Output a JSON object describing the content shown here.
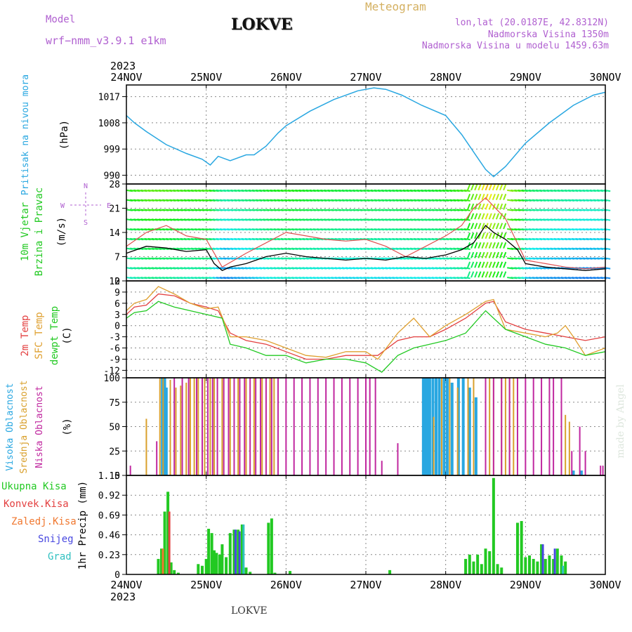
{
  "header": {
    "model_label": "Model",
    "model_value": "wrf−nmm_v3.9.1  e1km",
    "station": "LOKVE",
    "meteogram": "Meteogram",
    "lonlat": "lon,lat (20.0187E, 42.8312N)",
    "elev": "Nadmorska Visina 1350m",
    "elev_model": "Nadmorska Visina u modelu 1459.63m",
    "footer": "LOKVE",
    "credit": "made by Angel",
    "year": "2023"
  },
  "colors": {
    "pressure": "#29a7e1",
    "wind_speed": "#000000",
    "gust": "#e05050",
    "t2m": "#e34040",
    "sfc": "#dfa030",
    "dew": "#22c922",
    "high_cloud": "#29a7e1",
    "mid_cloud": "#d9a02c",
    "low_cloud": "#c0279f",
    "total": "#22c922",
    "conv": "#e34040",
    "frozen": "#f07830",
    "snow": "#4848e0",
    "grad": "#30c0c0",
    "grid": "#888888"
  },
  "chart_data": [
    {
      "type": "line",
      "ylabel": "Pritisak na nivou mora",
      "unit": "(hPa)",
      "x_ticks": [
        "24NOV",
        "25NOV",
        "26NOV",
        "27NOV",
        "28NOV",
        "29NOV",
        "30NOV"
      ],
      "x_range_days": [
        0,
        6
      ],
      "yticks": [
        990,
        999,
        1008,
        1017
      ],
      "ylim": [
        987,
        1021
      ],
      "series": [
        {
          "name": "",
          "x": [
            0,
            0.1,
            0.25,
            0.5,
            0.75,
            0.95,
            1.05,
            1.15,
            1.3,
            1.5,
            1.6,
            1.75,
            1.9,
            2.0,
            2.3,
            2.6,
            2.9,
            3.1,
            3.25,
            3.45,
            3.7,
            4.0,
            4.2,
            4.4,
            4.5,
            4.6,
            4.75,
            5.0,
            5.3,
            5.6,
            5.85,
            6.0
          ],
          "y": [
            1010.5,
            1008,
            1005,
            1000.5,
            997.5,
            995.5,
            993.5,
            996.5,
            995,
            997,
            997,
            1000,
            1004.5,
            1007,
            1012,
            1016,
            1019,
            1020,
            1019.5,
            1017.5,
            1014,
            1010.5,
            1004,
            996,
            992,
            989.5,
            993,
            1001,
            1008,
            1014,
            1017.5,
            1018.5
          ]
        }
      ]
    },
    {
      "type": "line",
      "ylabel": "10m Vjetar Brzina i Pravac",
      "unit": "(m/s)",
      "compass": [
        "N",
        "W",
        "E",
        "S"
      ],
      "yticks": [
        0,
        7,
        14,
        21,
        28
      ],
      "ylim": [
        0,
        28
      ],
      "series": [
        {
          "name": "wind",
          "x": [
            0,
            0.25,
            0.5,
            0.75,
            1.0,
            1.1,
            1.2,
            1.3,
            1.5,
            1.75,
            2.0,
            2.25,
            2.5,
            2.75,
            3.0,
            3.25,
            3.5,
            3.75,
            4.0,
            4.2,
            4.35,
            4.5,
            4.6,
            4.75,
            4.9,
            5.0,
            5.25,
            5.5,
            5.75,
            6.0
          ],
          "y": [
            8,
            10,
            9.5,
            8.5,
            9,
            5,
            3,
            4,
            5,
            7,
            8,
            7,
            6.5,
            6,
            6.5,
            6,
            7,
            6.5,
            7.5,
            9,
            11,
            16,
            14,
            12,
            9,
            5,
            4,
            3.5,
            3,
            3.5
          ]
        },
        {
          "name": "gust",
          "x": [
            0,
            0.25,
            0.5,
            0.75,
            1.0,
            1.2,
            1.5,
            1.75,
            2.0,
            2.25,
            2.5,
            2.75,
            3.0,
            3.25,
            3.5,
            3.75,
            4.0,
            4.2,
            4.35,
            4.5,
            4.75,
            5.0,
            5.25,
            5.5,
            5.75,
            6.0
          ],
          "y": [
            10,
            14,
            16,
            13,
            12,
            4,
            8,
            11,
            14,
            13,
            12,
            11.5,
            12,
            10,
            7,
            10,
            13,
            16,
            21,
            24,
            18,
            6,
            5,
            4,
            3.5,
            4
          ]
        }
      ]
    },
    {
      "type": "line",
      "ylabel": "2m Temp / SFC Temp / dewpt Temp",
      "unit": "(C)",
      "yticks": [
        -12,
        -9,
        -6,
        -3,
        0,
        3,
        6,
        9,
        12
      ],
      "ylim": [
        -14,
        12
      ],
      "series": [
        {
          "name": "2m Temp",
          "x": [
            0,
            0.1,
            0.25,
            0.4,
            0.6,
            0.8,
            1.0,
            1.15,
            1.3,
            1.5,
            1.75,
            2.0,
            2.25,
            2.5,
            2.75,
            3.0,
            3.15,
            3.4,
            3.6,
            3.8,
            4.0,
            4.25,
            4.5,
            4.6,
            4.75,
            5.0,
            5.25,
            5.5,
            5.75,
            6.0
          ],
          "y": [
            3,
            5,
            5.5,
            8.5,
            8,
            6,
            5,
            4,
            -2,
            -4,
            -5,
            -7,
            -9,
            -9,
            -8,
            -8,
            -8,
            -4,
            -3,
            -3,
            -1,
            2,
            6,
            6.5,
            1,
            -1,
            -2,
            -3,
            -4,
            -3
          ]
        },
        {
          "name": "SFC Temp",
          "x": [
            0,
            0.1,
            0.25,
            0.4,
            0.6,
            0.8,
            1.0,
            1.15,
            1.3,
            1.5,
            1.75,
            2.0,
            2.25,
            2.5,
            2.75,
            3.0,
            3.15,
            3.4,
            3.6,
            3.8,
            4.0,
            4.25,
            4.5,
            4.6,
            4.75,
            5.0,
            5.25,
            5.4,
            5.5,
            5.6,
            5.75,
            6.0
          ],
          "y": [
            4,
            6,
            7,
            10.5,
            8.5,
            6,
            4.5,
            5,
            -3,
            -3,
            -4,
            -6,
            -8,
            -8.5,
            -7,
            -7,
            -9,
            -2,
            2,
            -3,
            0,
            3,
            6.5,
            7,
            -1,
            -2,
            -3,
            -2,
            0,
            -3,
            -8,
            -6
          ]
        },
        {
          "name": "dewpt Temp",
          "x": [
            0,
            0.1,
            0.25,
            0.4,
            0.6,
            0.8,
            1.0,
            1.2,
            1.3,
            1.5,
            1.75,
            2.0,
            2.25,
            2.5,
            2.75,
            3.0,
            3.2,
            3.4,
            3.6,
            3.8,
            4.0,
            4.25,
            4.5,
            4.75,
            5.0,
            5.25,
            5.5,
            5.75,
            6.0
          ],
          "y": [
            2,
            3.5,
            4,
            6.5,
            5,
            4,
            3,
            2,
            -5,
            -6,
            -8,
            -8,
            -10,
            -9,
            -9,
            -10,
            -12.5,
            -8,
            -6,
            -5,
            -4,
            -2,
            4,
            -1,
            -3,
            -5,
            -6,
            -8,
            -7
          ]
        }
      ]
    },
    {
      "type": "bar",
      "ylabel": "Visoka Oblacnost / Srednja Oblacnost / Niska Oblacnost",
      "unit": "(%)",
      "yticks": [
        0,
        25,
        50,
        75,
        100
      ],
      "ylim": [
        0,
        100
      ],
      "series": [
        {
          "name": "Visoka Oblacnost",
          "x": [
            0.45,
            0.48,
            0.5,
            3.72,
            3.74,
            3.76,
            3.78,
            3.8,
            3.84,
            3.88,
            3.92,
            3.98,
            4.02,
            4.08,
            4.16,
            4.22,
            4.3,
            4.38,
            5.6,
            5.7
          ],
          "y": [
            100,
            100,
            90,
            100,
            100,
            100,
            100,
            100,
            100,
            100,
            100,
            100,
            100,
            95,
            100,
            100,
            90,
            80,
            5,
            5
          ]
        },
        {
          "name": "Srednja Oblacnost",
          "x": [
            0.25,
            0.42,
            0.46,
            0.55,
            0.62,
            0.68,
            0.75,
            0.8,
            0.85,
            0.9,
            0.98,
            1.05,
            1.1,
            1.2,
            1.3,
            1.4,
            1.5,
            1.6,
            1.7,
            1.8,
            1.85,
            3.85,
            3.95,
            4.05,
            4.15,
            4.28,
            4.35,
            4.5,
            4.55,
            4.6,
            4.7,
            4.75,
            4.8,
            4.85,
            5.5,
            5.55
          ],
          "y": [
            58,
            100,
            100,
            98,
            90,
            92,
            95,
            100,
            100,
            100,
            100,
            100,
            100,
            100,
            100,
            100,
            100,
            100,
            100,
            100,
            100,
            60,
            100,
            100,
            90,
            100,
            100,
            100,
            100,
            100,
            100,
            100,
            100,
            100,
            62,
            55
          ]
        },
        {
          "name": "Niska Oblacnost",
          "x": [
            0.05,
            0.38,
            0.6,
            0.7,
            0.78,
            0.88,
            0.95,
            1.02,
            1.08,
            1.14,
            1.22,
            1.28,
            1.35,
            1.42,
            1.48,
            1.55,
            1.62,
            1.68,
            1.75,
            1.82,
            1.9,
            2.0,
            2.1,
            2.2,
            2.3,
            2.4,
            2.5,
            2.6,
            2.7,
            2.8,
            2.9,
            3.0,
            3.05,
            3.12,
            3.2,
            3.4,
            4.5,
            4.6,
            4.7,
            4.8,
            4.9,
            5.0,
            5.1,
            5.2,
            5.3,
            5.35,
            5.45,
            5.58,
            5.68,
            5.75,
            5.94,
            5.97
          ],
          "y": [
            10,
            35,
            100,
            100,
            100,
            100,
            100,
            100,
            100,
            100,
            100,
            100,
            100,
            100,
            100,
            100,
            100,
            100,
            100,
            100,
            100,
            100,
            100,
            100,
            100,
            100,
            100,
            100,
            100,
            100,
            100,
            100,
            100,
            100,
            15,
            33,
            100,
            100,
            100,
            100,
            100,
            100,
            100,
            100,
            100,
            100,
            100,
            25,
            50,
            25,
            10,
            10
          ]
        }
      ]
    },
    {
      "type": "bar",
      "ylabel": "1hr Precip",
      "unit": "(mm)",
      "yticks": [
        0,
        0.23,
        0.46,
        0.69,
        0.92,
        1.15
      ],
      "ylim": [
        0,
        1.15
      ],
      "legend": [
        "Ukupna Kisa",
        "Konvek.Kisa",
        "Zaledj.Kisa",
        "Snijeg",
        "Grad"
      ],
      "series": [
        {
          "name": "Ukupna Kisa",
          "x": [
            0.4,
            0.44,
            0.48,
            0.52,
            0.56,
            0.6,
            0.65,
            0.9,
            0.95,
            1.0,
            1.03,
            1.07,
            1.1,
            1.13,
            1.17,
            1.2,
            1.25,
            1.3,
            1.35,
            1.4,
            1.45,
            1.5,
            1.55,
            1.78,
            1.82,
            1.86,
            2.05,
            3.3,
            4.25,
            4.3,
            4.35,
            4.4,
            4.45,
            4.5,
            4.55,
            4.6,
            4.65,
            4.7,
            4.9,
            4.95,
            5.0,
            5.05,
            5.1,
            5.15,
            5.2,
            5.25,
            5.3,
            5.35,
            5.4,
            5.45,
            5.5
          ],
          "y": [
            0.18,
            0.3,
            0.73,
            0.96,
            0.14,
            0.05,
            0.02,
            0.12,
            0.1,
            0.18,
            0.53,
            0.48,
            0.28,
            0.25,
            0.23,
            0.35,
            0.2,
            0.48,
            0.52,
            0.52,
            0.58,
            0.08,
            0.03,
            0.6,
            0.65,
            0.02,
            0.04,
            0.05,
            0.18,
            0.23,
            0.15,
            0.23,
            0.12,
            0.3,
            0.27,
            1.12,
            0.12,
            0.08,
            0.6,
            0.62,
            0.2,
            0.22,
            0.18,
            0.15,
            0.35,
            0.18,
            0.22,
            0.18,
            0.3,
            0.22,
            0.15
          ]
        },
        {
          "name": "Konvek.Kisa",
          "x": [
            0.52
          ],
          "y": [
            0.73
          ]
        },
        {
          "name": "Zaledj.Kisa",
          "x": [
            0.44
          ],
          "y": [
            0.3
          ]
        },
        {
          "name": "Snijeg",
          "x": [
            1.35,
            1.4,
            5.2,
            5.35
          ],
          "y": [
            0.52,
            0.5,
            0.35,
            0.3
          ]
        },
        {
          "name": "Grad",
          "x": [
            1.45,
            5.45
          ],
          "y": [
            0.58,
            0.1
          ]
        }
      ]
    }
  ]
}
